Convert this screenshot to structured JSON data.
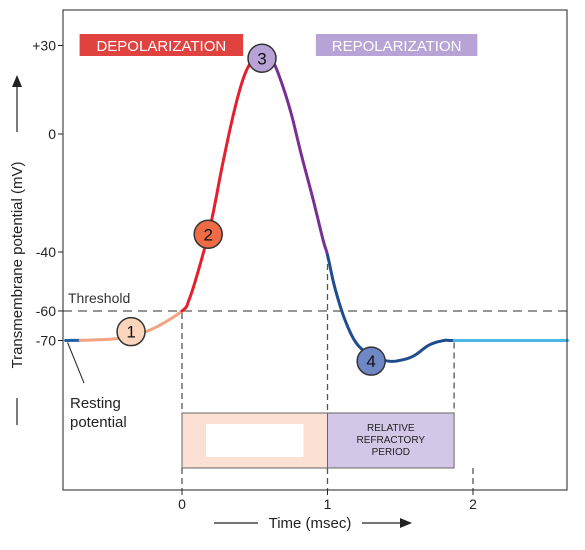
{
  "chart_data": {
    "type": "line",
    "title": "",
    "xlabel": "Time (msec)",
    "ylabel": "Transmembrane potential (mV)",
    "xlim": [
      -0.8,
      2.65
    ],
    "ylim": [
      -110,
      40
    ],
    "x_ticks": [
      {
        "value": 0,
        "label": "0"
      },
      {
        "value": 1,
        "label": "1"
      },
      {
        "value": 2,
        "label": "2"
      }
    ],
    "y_ticks": [
      {
        "value": 30,
        "label": "+30"
      },
      {
        "value": 0,
        "label": "0"
      },
      {
        "value": -40,
        "label": "-40"
      },
      {
        "value": -60,
        "label": "-60"
      },
      {
        "value": -70,
        "label": "-70"
      }
    ],
    "threshold": {
      "value": -60,
      "label": "Threshold"
    },
    "curve": [
      [
        -0.8,
        -70
      ],
      [
        -0.6,
        -69.8
      ],
      [
        -0.4,
        -69
      ],
      [
        -0.2,
        -66
      ],
      [
        0,
        -60
      ],
      [
        0.05,
        -56
      ],
      [
        0.12,
        -45
      ],
      [
        0.2,
        -30
      ],
      [
        0.28,
        -10
      ],
      [
        0.36,
        8
      ],
      [
        0.43,
        20
      ],
      [
        0.5,
        26
      ],
      [
        0.56,
        27
      ],
      [
        0.62,
        25
      ],
      [
        0.68,
        18
      ],
      [
        0.75,
        7
      ],
      [
        0.82,
        -7
      ],
      [
        0.9,
        -22
      ],
      [
        0.97,
        -36
      ],
      [
        1.0,
        -41
      ],
      [
        1.05,
        -52
      ],
      [
        1.12,
        -63
      ],
      [
        1.2,
        -71
      ],
      [
        1.3,
        -75
      ],
      [
        1.42,
        -77
      ],
      [
        1.52,
        -76.5
      ],
      [
        1.6,
        -75
      ],
      [
        1.7,
        -71.5
      ],
      [
        1.8,
        -70
      ],
      [
        1.87,
        -70
      ],
      [
        2.2,
        -70
      ],
      [
        2.65,
        -70
      ]
    ],
    "segments": [
      {
        "from": -0.8,
        "to": -0.7,
        "color": "#1f5fa3",
        "width": 3
      },
      {
        "from": -0.7,
        "to": 0.0,
        "color": "#f2a482",
        "width": 3
      },
      {
        "from": 0.0,
        "to": 0.5,
        "color": "#e5202e",
        "width": 3
      },
      {
        "from": 0.5,
        "to": 1.0,
        "color": "#7a2f95",
        "width": 3
      },
      {
        "from": 1.0,
        "to": 1.87,
        "color": "#1f4d8e",
        "width": 3
      },
      {
        "from": 1.87,
        "to": 2.65,
        "color": "#4ab7e4",
        "width": 3
      }
    ],
    "phases": [
      {
        "label": "1",
        "x": -0.35,
        "y": -67,
        "fill": "#fbd6bd"
      },
      {
        "label": "2",
        "x": 0.18,
        "y": -34,
        "fill": "#ee6b45"
      },
      {
        "label": "3",
        "x": 0.55,
        "y": 25,
        "fill": "#b7a3d6"
      },
      {
        "label": "4",
        "x": 1.3,
        "y": -77,
        "fill": "#6f87c4"
      }
    ],
    "banners": [
      {
        "label": "DEPOLARIZATION",
        "x0": -0.8,
        "x1": 0.42,
        "bg": "#e0433f",
        "color": "#ffffff"
      },
      {
        "label": "REPOLARIZATION",
        "x0": 0.92,
        "x1": 2.03,
        "bg": "#b8a3d6",
        "color": "#ffffff"
      }
    ],
    "refractory_boxes": [
      {
        "x0": 0.0,
        "x1": 1.0,
        "label": "",
        "fill": "#fbe0d3",
        "inner_fill": "#ffffff"
      },
      {
        "x0": 1.0,
        "x1": 1.87,
        "label": "RELATIVE REFRACTORY PERIOD",
        "fill": "#d3c7e8"
      }
    ],
    "annotations": [
      {
        "text": "Resting potential",
        "target_x": -0.8,
        "target_y": -70
      }
    ],
    "colors": {
      "axis": "#222222",
      "threshold_line": "#888888",
      "dashed_guide": "#555555"
    }
  }
}
